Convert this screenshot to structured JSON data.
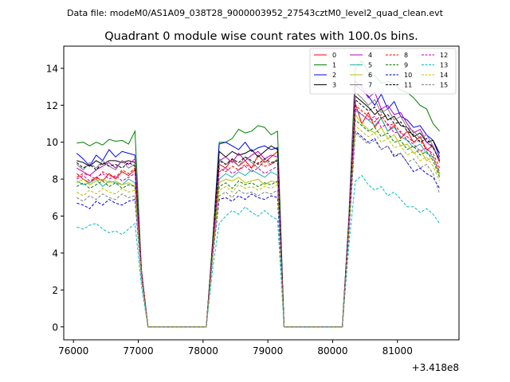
{
  "chart_data": {
    "type": "line",
    "suptitle": "Data file: modeM0/AS1A09_038T28_9000003952_27543cztM0_level2_quad_clean.evt",
    "title": "Quadrant 0 module wise count rates with 100.0s bins.",
    "xlabel": "",
    "ylabel": "",
    "x_offset_label": "+3.418e8",
    "xlim": [
      75850,
      81950
    ],
    "ylim": [
      -0.7,
      15.2
    ],
    "xticks": [
      76000,
      77000,
      78000,
      79000,
      80000,
      81000
    ],
    "xtick_labels": [
      "76000",
      "77000",
      "78000",
      "79000",
      "80000",
      "81000"
    ],
    "yticks": [
      0,
      2,
      4,
      6,
      8,
      10,
      12,
      14
    ],
    "ytick_labels": [
      "0",
      "2",
      "4",
      "6",
      "8",
      "10",
      "12",
      "14"
    ],
    "grid": false,
    "legend_position": "top-right",
    "x": [
      76050,
      76150,
      76250,
      76350,
      76450,
      76550,
      76650,
      76750,
      76850,
      76950,
      77050,
      77150,
      77250,
      77350,
      77450,
      77550,
      77650,
      77750,
      77850,
      77950,
      78050,
      78150,
      78250,
      78350,
      78450,
      78550,
      78650,
      78750,
      78850,
      78950,
      79050,
      79150,
      79250,
      79350,
      79450,
      79550,
      79650,
      79750,
      79850,
      79950,
      80050,
      80150,
      80250,
      80350,
      80450,
      80550,
      80650,
      80750,
      80850,
      80950,
      81050,
      81150,
      81250,
      81350,
      81450,
      81550,
      81650
    ],
    "series": [
      {
        "name": "0",
        "color": "#ff0000",
        "dash": false,
        "values": [
          8.3,
          8.0,
          7.8,
          8.1,
          7.9,
          8.3,
          8.0,
          8.4,
          8.2,
          8.5,
          3.0,
          0,
          0,
          0,
          0,
          0,
          0,
          0,
          0,
          0,
          0,
          4.5,
          8.8,
          8.6,
          9.1,
          8.7,
          9.0,
          8.6,
          9.3,
          8.9,
          9.2,
          9.5,
          0,
          0,
          0,
          0,
          0,
          0,
          0,
          0,
          0,
          0,
          5.5,
          12.1,
          11.0,
          11.6,
          10.8,
          11.3,
          10.6,
          10.9,
          10.2,
          10.6,
          10.0,
          10.3,
          9.6,
          9.8,
          8.9
        ]
      },
      {
        "name": "1",
        "color": "#008000",
        "dash": false,
        "values": [
          9.95,
          10.0,
          9.8,
          10.0,
          9.85,
          10.15,
          10.05,
          10.1,
          9.9,
          10.6,
          3.0,
          0,
          0,
          0,
          0,
          0,
          0,
          0,
          0,
          0,
          0,
          4.8,
          10.0,
          10.0,
          10.2,
          10.7,
          10.5,
          10.6,
          10.9,
          10.8,
          10.4,
          10.6,
          0,
          0,
          0,
          0,
          0,
          0,
          0,
          0,
          0,
          0,
          6.0,
          14.0,
          14.4,
          13.8,
          13.6,
          13.2,
          13.3,
          13.2,
          12.8,
          12.7,
          12.4,
          12.0,
          11.8,
          11.0,
          10.6
        ]
      },
      {
        "name": "2",
        "color": "#0000ff",
        "dash": false,
        "values": [
          9.4,
          9.1,
          8.7,
          9.3,
          9.0,
          9.6,
          9.2,
          9.5,
          9.4,
          9.3,
          3.0,
          0,
          0,
          0,
          0,
          0,
          0,
          0,
          0,
          0,
          0,
          4.5,
          9.9,
          10.0,
          9.8,
          9.6,
          10.0,
          9.5,
          9.7,
          9.8,
          9.6,
          9.7,
          0,
          0,
          0,
          0,
          0,
          0,
          0,
          0,
          0,
          0,
          5.8,
          13.1,
          12.8,
          12.5,
          12.0,
          12.6,
          11.8,
          12.2,
          11.4,
          11.2,
          10.8,
          10.9,
          10.4,
          10.1,
          9.2
        ]
      },
      {
        "name": "3",
        "color": "#000000",
        "dash": false,
        "values": [
          9.0,
          8.9,
          8.7,
          9.0,
          8.8,
          9.0,
          9.0,
          8.9,
          9.0,
          8.9,
          3.0,
          0,
          0,
          0,
          0,
          0,
          0,
          0,
          0,
          0,
          0,
          4.6,
          9.5,
          9.2,
          9.5,
          9.3,
          9.4,
          9.6,
          9.2,
          9.5,
          9.8,
          9.6,
          0,
          0,
          0,
          0,
          0,
          0,
          0,
          0,
          0,
          0,
          5.7,
          12.5,
          12.2,
          11.9,
          11.5,
          11.8,
          11.2,
          11.4,
          10.9,
          10.8,
          10.3,
          10.5,
          10.0,
          10.1,
          9.4
        ]
      },
      {
        "name": "4",
        "color": "#bf00bf",
        "dash": false,
        "values": [
          8.6,
          8.4,
          8.2,
          8.5,
          8.7,
          8.9,
          8.6,
          9.0,
          8.8,
          9.1,
          3.0,
          0,
          0,
          0,
          0,
          0,
          0,
          0,
          0,
          0,
          0,
          4.4,
          9.0,
          9.2,
          8.9,
          9.4,
          9.0,
          9.3,
          9.5,
          9.1,
          9.3,
          9.2,
          0,
          0,
          0,
          0,
          0,
          0,
          0,
          0,
          0,
          0,
          5.8,
          13.3,
          13.0,
          12.4,
          12.7,
          11.8,
          12.0,
          11.5,
          11.6,
          11.0,
          10.5,
          10.7,
          10.0,
          9.7,
          9.1
        ]
      },
      {
        "name": "5",
        "color": "#20b2aa",
        "dash": false,
        "values": [
          7.9,
          7.7,
          7.8,
          8.0,
          7.6,
          7.9,
          7.8,
          7.7,
          8.0,
          7.8,
          2.8,
          0,
          0,
          0,
          0,
          0,
          0,
          0,
          0,
          0,
          0,
          4.2,
          8.0,
          8.3,
          8.1,
          8.4,
          8.2,
          8.5,
          8.3,
          8.1,
          8.4,
          8.2,
          0,
          0,
          0,
          0,
          0,
          0,
          0,
          0,
          0,
          0,
          5.6,
          11.7,
          11.5,
          11.2,
          10.9,
          11.3,
          10.6,
          10.8,
          10.3,
          10.1,
          9.7,
          9.9,
          9.4,
          9.2,
          8.3
        ]
      },
      {
        "name": "6",
        "color": "#bfbf00",
        "dash": false,
        "values": [
          7.8,
          8.0,
          7.7,
          7.9,
          8.0,
          7.8,
          7.9,
          7.7,
          7.8,
          7.6,
          2.8,
          0,
          0,
          0,
          0,
          0,
          0,
          0,
          0,
          0,
          0,
          4.0,
          7.8,
          8.0,
          7.9,
          8.1,
          7.8,
          7.9,
          8.0,
          7.7,
          7.9,
          7.8,
          0,
          0,
          0,
          0,
          0,
          0,
          0,
          0,
          0,
          0,
          5.4,
          11.5,
          11.0,
          10.7,
          10.5,
          10.8,
          10.2,
          10.4,
          9.8,
          9.9,
          9.4,
          9.6,
          9.0,
          9.2,
          8.2
        ]
      },
      {
        "name": "7",
        "color": "#808080",
        "dash": false,
        "values": [
          8.8,
          8.5,
          8.9,
          8.6,
          9.0,
          8.7,
          8.5,
          9.0,
          8.6,
          8.8,
          3.0,
          0,
          0,
          0,
          0,
          0,
          0,
          0,
          0,
          0,
          0,
          4.5,
          9.1,
          8.8,
          9.0,
          8.7,
          9.2,
          8.9,
          8.6,
          9.0,
          8.8,
          9.1,
          0,
          0,
          0,
          0,
          0,
          0,
          0,
          0,
          0,
          0,
          5.8,
          12.7,
          12.4,
          12.0,
          12.3,
          11.6,
          11.8,
          11.2,
          11.4,
          10.8,
          10.6,
          10.2,
          10.4,
          9.8,
          9.0
        ]
      },
      {
        "name": "8",
        "color": "#ff0000",
        "dash": true,
        "values": [
          8.1,
          8.3,
          8.2,
          8.0,
          8.4,
          8.2,
          8.1,
          8.5,
          8.3,
          8.6,
          3.0,
          0,
          0,
          0,
          0,
          0,
          0,
          0,
          0,
          0,
          0,
          4.4,
          8.6,
          8.4,
          8.7,
          8.5,
          8.8,
          8.6,
          8.9,
          8.7,
          8.8,
          9.0,
          0,
          0,
          0,
          0,
          0,
          0,
          0,
          0,
          0,
          0,
          5.6,
          12.0,
          11.7,
          11.4,
          11.1,
          11.5,
          10.9,
          11.0,
          10.5,
          10.3,
          10.0,
          10.1,
          9.6,
          9.4,
          8.6
        ]
      },
      {
        "name": "9",
        "color": "#008000",
        "dash": true,
        "values": [
          7.6,
          7.8,
          7.5,
          7.7,
          7.9,
          7.6,
          7.8,
          7.5,
          7.7,
          7.6,
          2.8,
          0,
          0,
          0,
          0,
          0,
          0,
          0,
          0,
          0,
          0,
          4.0,
          7.6,
          7.8,
          7.5,
          7.9,
          7.7,
          7.8,
          7.6,
          7.8,
          7.7,
          7.9,
          0,
          0,
          0,
          0,
          0,
          0,
          0,
          0,
          0,
          0,
          5.4,
          11.2,
          10.9,
          10.6,
          10.8,
          10.3,
          10.5,
          10.0,
          10.1,
          9.6,
          9.8,
          9.3,
          9.5,
          9.0,
          8.1
        ]
      },
      {
        "name": "10",
        "color": "#0000ff",
        "dash": true,
        "values": [
          6.7,
          6.6,
          6.4,
          6.8,
          6.6,
          6.9,
          6.7,
          6.6,
          6.8,
          6.9,
          2.6,
          0,
          0,
          0,
          0,
          0,
          0,
          0,
          0,
          0,
          0,
          3.8,
          6.9,
          7.0,
          6.8,
          7.1,
          6.9,
          7.2,
          7.0,
          6.9,
          7.1,
          7.0,
          0,
          0,
          0,
          0,
          0,
          0,
          0,
          0,
          0,
          0,
          5.0,
          10.6,
          10.3,
          10.0,
          10.2,
          9.6,
          9.8,
          9.2,
          9.4,
          8.9,
          8.4,
          8.6,
          8.3,
          8.1,
          7.5
        ]
      },
      {
        "name": "11",
        "color": "#000000",
        "dash": true,
        "values": [
          8.9,
          8.6,
          8.8,
          8.5,
          8.9,
          8.7,
          8.8,
          8.6,
          8.9,
          8.7,
          3.0,
          0,
          0,
          0,
          0,
          0,
          0,
          0,
          0,
          0,
          0,
          4.5,
          9.0,
          8.8,
          9.1,
          8.9,
          9.2,
          9.0,
          8.8,
          9.1,
          8.9,
          9.0,
          0,
          0,
          0,
          0,
          0,
          0,
          0,
          0,
          0,
          0,
          5.7,
          12.3,
          12.0,
          11.7,
          11.9,
          11.3,
          11.5,
          11.0,
          11.1,
          10.6,
          10.4,
          10.0,
          10.2,
          9.7,
          9.0
        ]
      },
      {
        "name": "12",
        "color": "#bf00bf",
        "dash": true,
        "values": [
          8.0,
          8.2,
          7.9,
          8.1,
          8.3,
          8.0,
          8.2,
          7.9,
          8.1,
          8.3,
          2.9,
          0,
          0,
          0,
          0,
          0,
          0,
          0,
          0,
          0,
          0,
          4.3,
          8.4,
          8.6,
          8.3,
          8.5,
          8.7,
          8.4,
          8.6,
          8.3,
          8.5,
          8.7,
          0,
          0,
          0,
          0,
          0,
          0,
          0,
          0,
          0,
          0,
          5.6,
          11.8,
          11.5,
          11.2,
          11.4,
          10.8,
          11.0,
          10.5,
          10.6,
          10.1,
          9.9,
          9.5,
          9.7,
          9.2,
          8.4
        ]
      },
      {
        "name": "13",
        "color": "#00bfbf",
        "dash": true,
        "values": [
          5.4,
          5.3,
          5.5,
          5.6,
          5.3,
          5.1,
          5.2,
          5.0,
          5.3,
          5.6,
          2.2,
          0,
          0,
          0,
          0,
          0,
          0,
          0,
          0,
          0,
          0,
          3.2,
          5.6,
          6.0,
          6.3,
          6.1,
          6.5,
          6.2,
          6.0,
          6.3,
          6.0,
          5.8,
          0,
          0,
          0,
          0,
          0,
          0,
          0,
          0,
          0,
          0,
          4.4,
          7.9,
          8.2,
          7.7,
          7.4,
          7.6,
          7.1,
          7.3,
          6.9,
          6.5,
          6.5,
          6.2,
          6.4,
          6.1,
          5.6
        ]
      },
      {
        "name": "14",
        "color": "#bfbf00",
        "dash": true,
        "values": [
          7.3,
          7.1,
          7.4,
          7.2,
          7.5,
          7.3,
          7.2,
          7.5,
          7.3,
          7.4,
          2.7,
          0,
          0,
          0,
          0,
          0,
          0,
          0,
          0,
          0,
          0,
          3.9,
          7.4,
          7.6,
          7.3,
          7.7,
          7.5,
          7.6,
          7.4,
          7.6,
          7.5,
          7.7,
          0,
          0,
          0,
          0,
          0,
          0,
          0,
          0,
          0,
          0,
          5.2,
          10.9,
          10.6,
          10.3,
          10.5,
          10.0,
          10.2,
          9.7,
          9.8,
          9.3,
          9.5,
          9.0,
          9.2,
          8.7,
          7.9
        ]
      },
      {
        "name": "15",
        "color": "#808080",
        "dash": true,
        "values": [
          7.0,
          6.8,
          7.1,
          6.9,
          7.2,
          7.0,
          6.9,
          7.2,
          7.0,
          7.1,
          2.6,
          0,
          0,
          0,
          0,
          0,
          0,
          0,
          0,
          0,
          0,
          3.8,
          7.1,
          7.3,
          7.0,
          7.4,
          7.2,
          7.3,
          7.1,
          7.3,
          7.2,
          7.4,
          0,
          0,
          0,
          0,
          0,
          0,
          0,
          0,
          0,
          0,
          5.0,
          10.5,
          10.2,
          9.9,
          10.1,
          9.6,
          9.8,
          9.3,
          9.4,
          8.9,
          9.1,
          8.6,
          8.8,
          8.3,
          7.2
        ]
      }
    ]
  }
}
